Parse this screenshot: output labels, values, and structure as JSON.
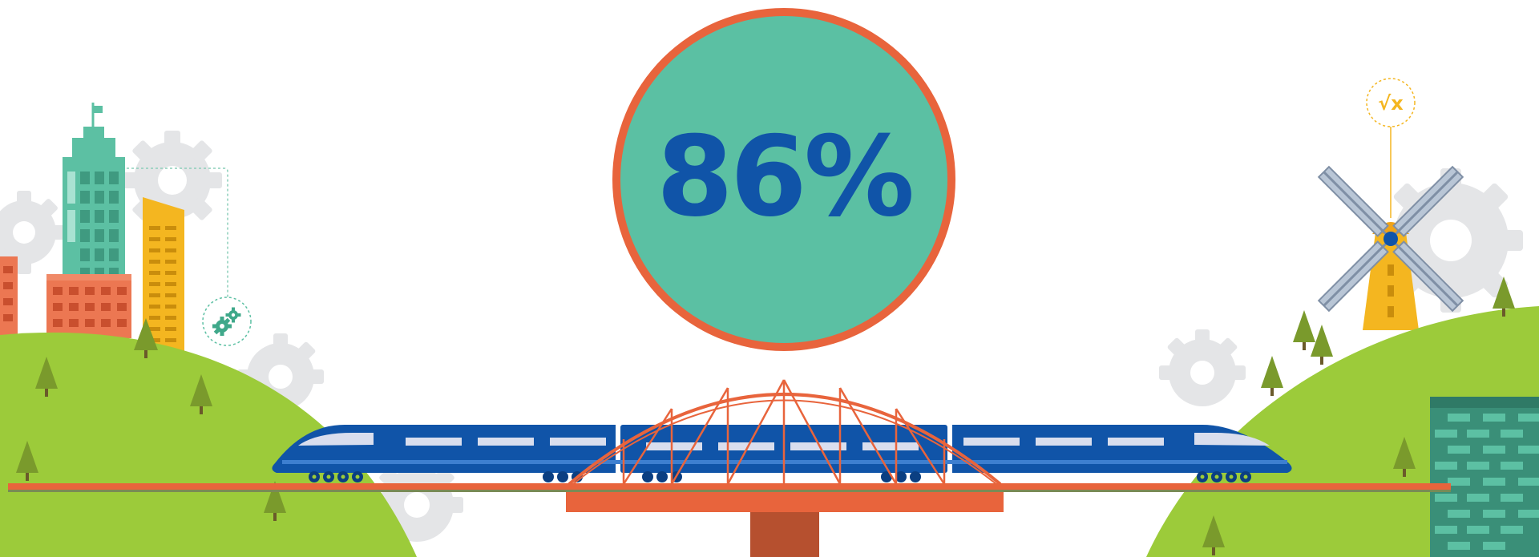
{
  "stat": {
    "value": "86%",
    "value_fraction": 0.86
  },
  "badges": {
    "math_symbol": "√x",
    "gears_icon": "gears-icon"
  },
  "colors": {
    "circle_fill": "#5bc0a3",
    "circle_ring": "#e8643c",
    "stat_text": "#1054a8",
    "hill_green": "#9ccb3a",
    "train_blue": "#1054a8",
    "bridge_orange": "#e8643c",
    "pier_brown": "#b6502f",
    "tree_green": "#7a9a2c",
    "gear_gray": "#e2e3e5",
    "building_teal": "#5cc0a3",
    "building_orange": "#ec7752",
    "building_yellow": "#f4b620",
    "windmill_yellow": "#f4b620",
    "windmill_blade": "#8fa1b8",
    "brick_wall": "#3a8f78"
  }
}
